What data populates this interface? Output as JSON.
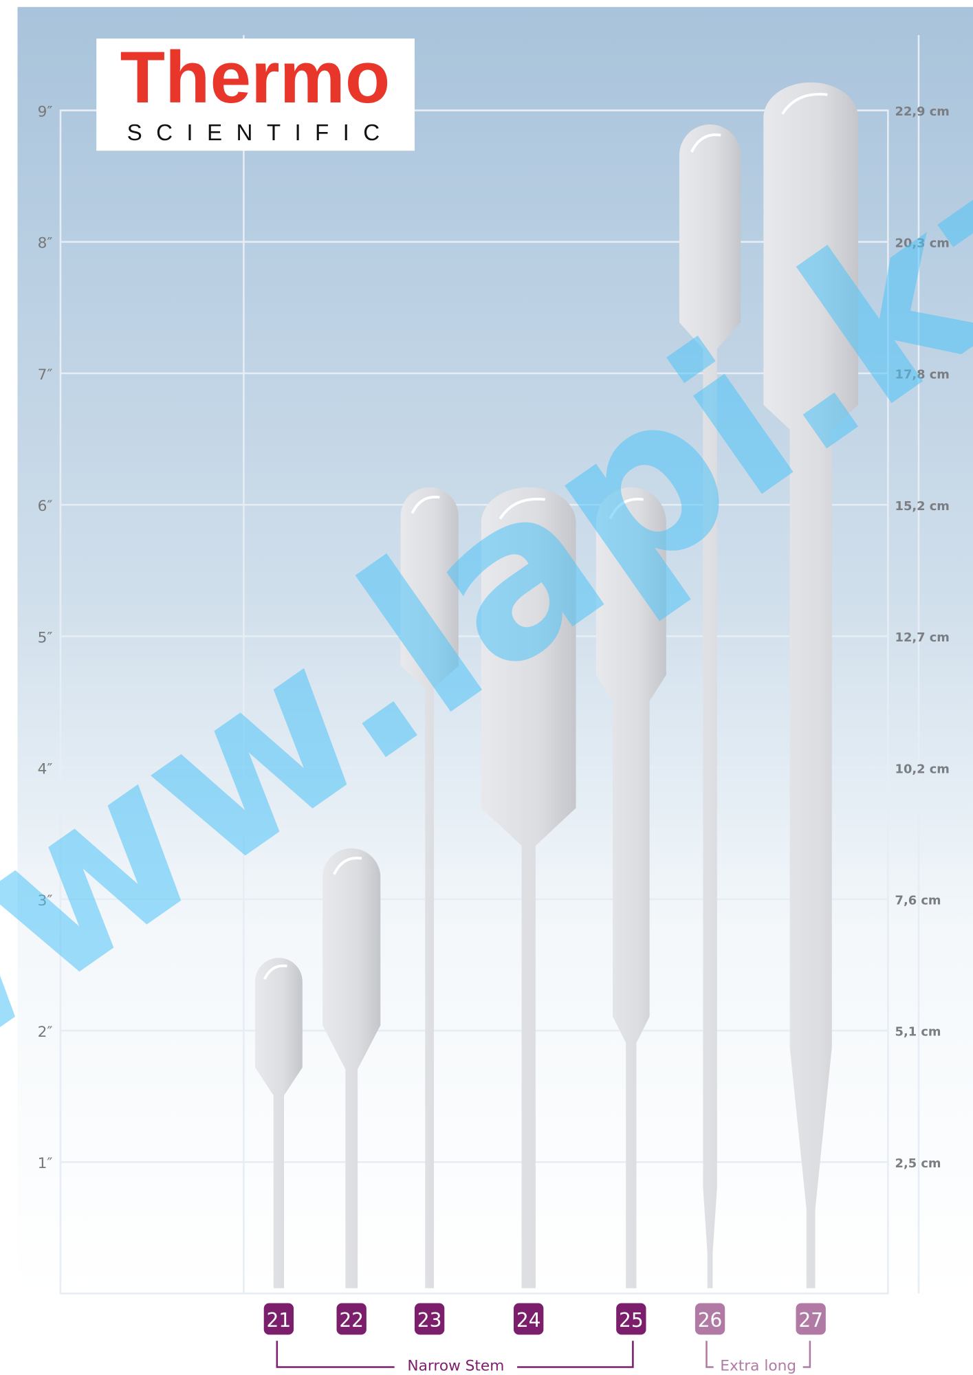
{
  "logo": {
    "brand": "Thermo",
    "sub": "SCIENTIFIC"
  },
  "inch_labels": [
    "1″",
    "2″",
    "3″",
    "4″",
    "5″",
    "6″",
    "7″",
    "8″",
    "9″"
  ],
  "cm_labels": [
    "2,5 cm",
    "5,1 cm",
    "7,6 cm",
    "10,2 cm",
    "12,7 cm",
    "15,2 cm",
    "17,8 cm",
    "20,3 cm",
    "22,9 cm"
  ],
  "models": [
    "21",
    "22",
    "23",
    "24",
    "25",
    "26",
    "27"
  ],
  "groups": [
    "Narrow Stem",
    "Extra long"
  ],
  "watermark": "www.lapi.kz"
}
